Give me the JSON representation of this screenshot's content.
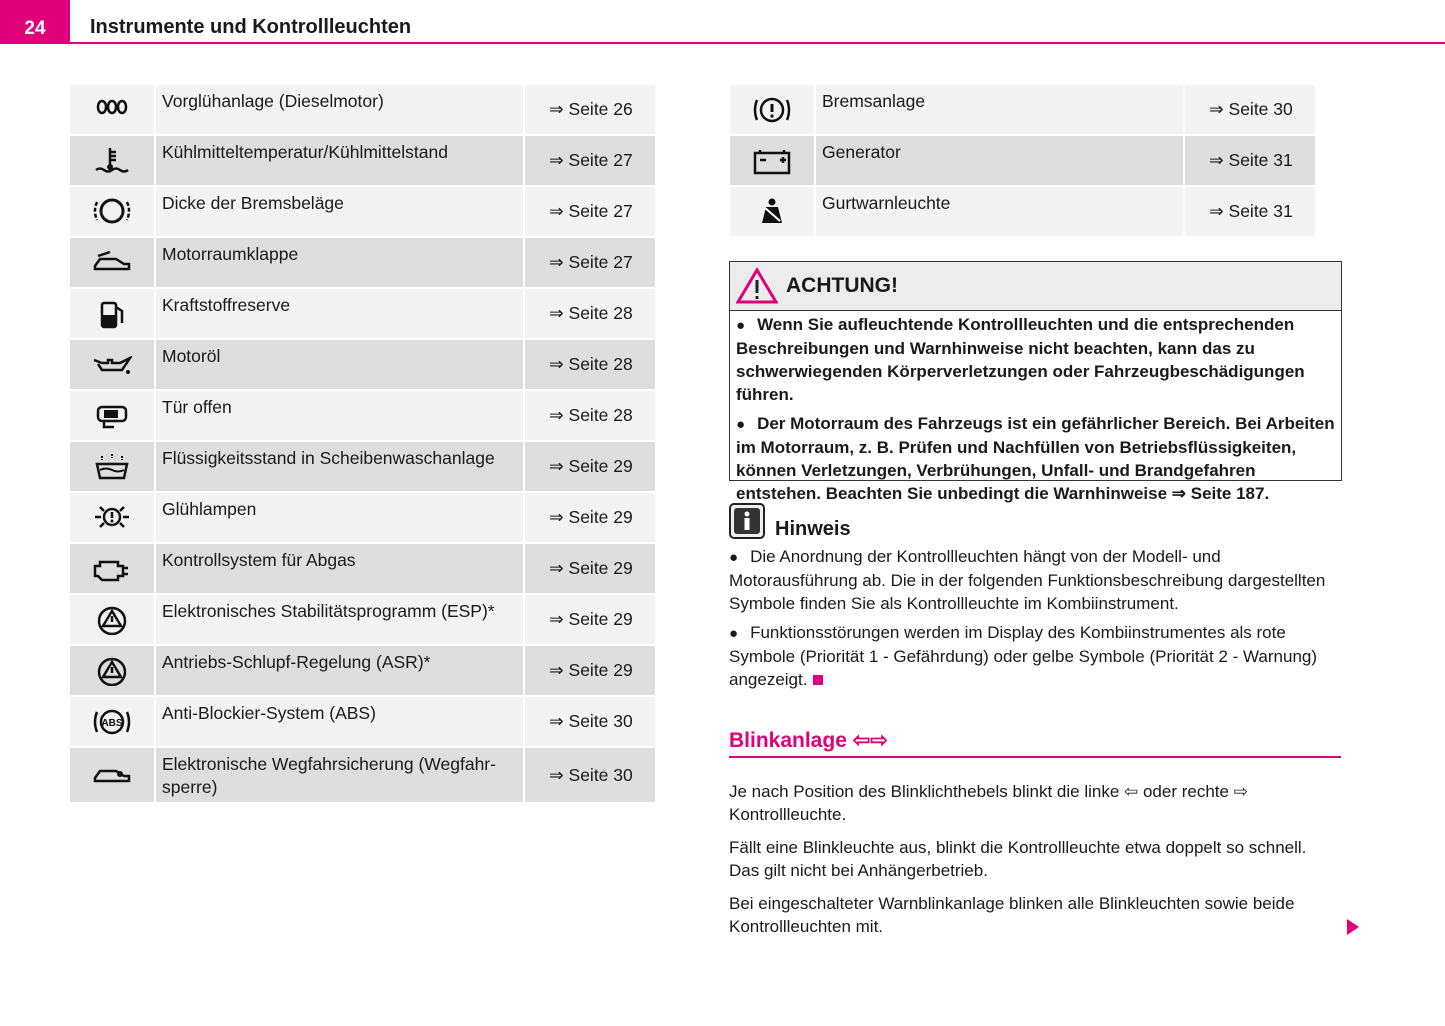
{
  "header": {
    "page_number": "24",
    "title": "Instrumente und Kontrollleuchten"
  },
  "left_table": {
    "rows": [
      [
        "Vorglühanlage (Dieselmotor)",
        "⇒ Seite 26"
      ],
      [
        "Kühlmitteltemperatur/Kühlmittelstand",
        "⇒ Seite 27"
      ],
      [
        "Dicke der Bremsbeläge",
        "⇒ Seite 27"
      ],
      [
        "Motorraumklappe",
        "⇒ Seite 27"
      ],
      [
        "Kraftstoffreserve",
        "⇒ Seite 28"
      ],
      [
        "Motoröl",
        "⇒ Seite 28"
      ],
      [
        "Tür offen",
        "⇒ Seite 28"
      ],
      [
        "Flüssigkeitsstand in Scheibenwaschanlage",
        "⇒ Seite 29"
      ],
      [
        "Glühlampen",
        "⇒ Seite 29"
      ],
      [
        "Kontrollsystem für Abgas",
        "⇒ Seite 29"
      ],
      [
        "Elektronisches Stabilitätsprogramm (ESP)*",
        "⇒ Seite 29"
      ],
      [
        "Antriebs-Schlupf-Regelung (ASR)*",
        "⇒ Seite 29"
      ],
      [
        "Anti-Blockier-System (ABS)",
        "⇒ Seite 30"
      ],
      [
        "Elektronische Wegfahrsicherung (Wegfahr-sperre)",
        "⇒ Seite 30"
      ]
    ]
  },
  "right_table": {
    "rows": [
      [
        "Bremsanlage",
        "⇒ Seite 30"
      ],
      [
        "Generator",
        "⇒ Seite 31"
      ],
      [
        "Gurtwarnleuchte",
        "⇒ Seite 31"
      ]
    ]
  },
  "warning": {
    "title": "ACHTUNG!",
    "items": [
      "Wenn Sie aufleuchtende Kontrollleuchten und die entsprechenden Beschreibungen und Warnhinweise nicht beachten, kann das zu schwerwiegenden Körperverletzungen oder Fahrzeugbeschädigungen führen.",
      "Der Motorraum des Fahrzeugs ist ein gefährlicher Bereich. Bei Arbeiten im Motorraum, z. B. Prüfen und Nachfüllen von Betriebsflüssigkeiten, können Verletzungen, Verbrühungen, Unfall- und Brandgefahren entstehen. Beachten Sie unbedingt die Warnhinweise ⇒ Seite 187."
    ]
  },
  "note": {
    "title": "Hinweis",
    "items": [
      "Die Anordnung der Kontrollleuchten hängt von der Modell- und Motorausführung ab. Die in der folgenden Funktionsbeschreibung dargestellten Symbole finden Sie als Kontrollleuchte im Kombiinstrument.",
      "Funktionsstörungen werden im Display des Kombiinstrumentes als rote Symbole (Priorität 1 - Gefährdung) oder gelbe Symbole (Priorität 2 - Warnung) angezeigt."
    ]
  },
  "section": {
    "title": "Blinkanlage ⇦⇨",
    "paragraphs": [
      "Je nach Position des Blinklichthebels blinkt die linke ⇦ oder rechte ⇨ Kontrollleuchte.",
      "Fällt eine Blinkleuchte aus, blinkt die Kontrollleuchte etwa doppelt so schnell. Das gilt nicht bei Anhängerbetrieb.",
      "Bei eingeschalteter Warnblinkanlage blinken alle Blinkleuchten sowie beide Kontrollleuchten mit."
    ]
  }
}
